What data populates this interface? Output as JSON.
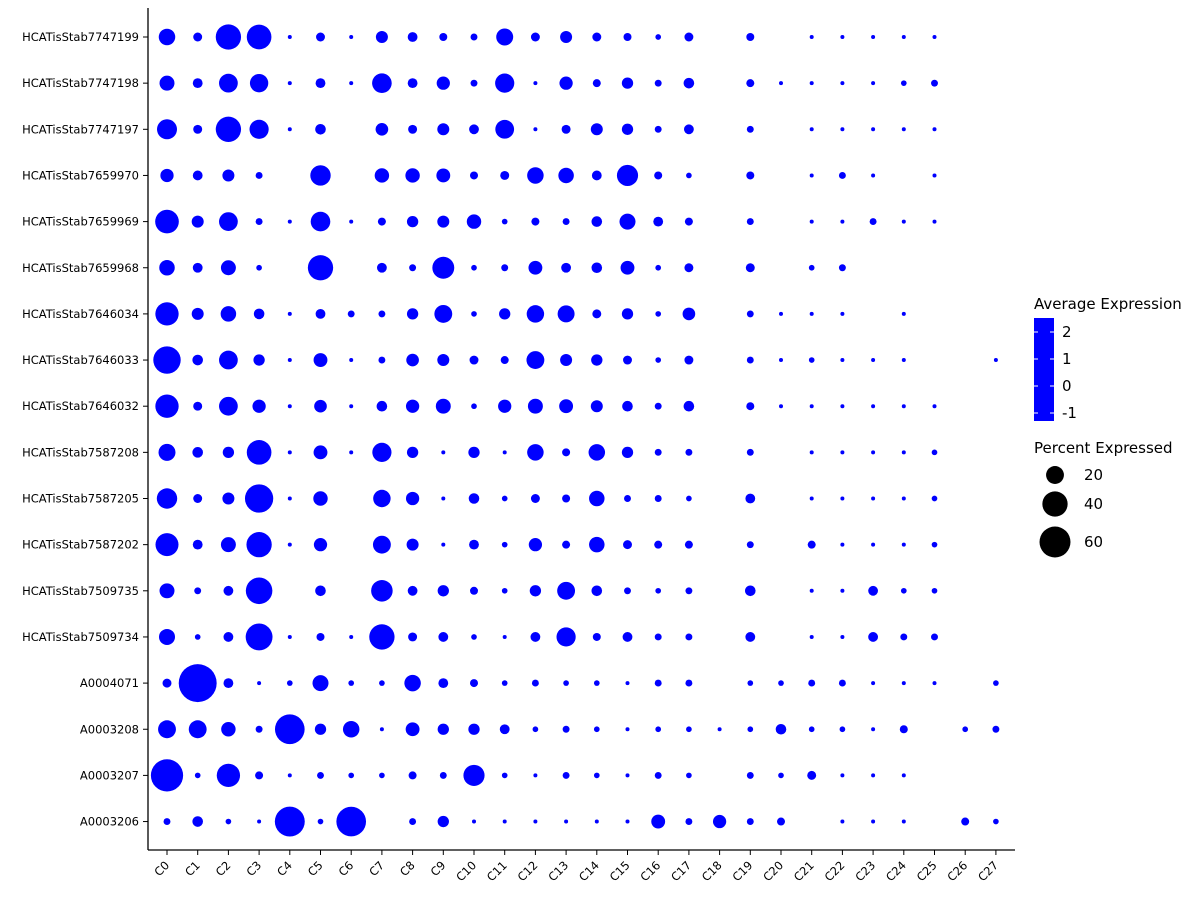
{
  "chart_data": {
    "type": "dotplot",
    "x_label": "",
    "y_label": "",
    "categories_x": [
      "C0",
      "C1",
      "C2",
      "C3",
      "C4",
      "C5",
      "C6",
      "C7",
      "C8",
      "C9",
      "C10",
      "C11",
      "C12",
      "C13",
      "C14",
      "C15",
      "C16",
      "C17",
      "C18",
      "C19",
      "C20",
      "C21",
      "C22",
      "C23",
      "C24",
      "C25",
      "C26",
      "C27"
    ],
    "categories_y": [
      "HCATisStab7747199",
      "HCATisStab7747198",
      "HCATisStab7747197",
      "HCATisStab7659970",
      "HCATisStab7659969",
      "HCATisStab7659968",
      "HCATisStab7646034",
      "HCATisStab7646033",
      "HCATisStab7646032",
      "HCATisStab7587208",
      "HCATisStab7587205",
      "HCATisStab7587202",
      "HCATisStab7509735",
      "HCATisStab7509734",
      "A0004071",
      "A0003208",
      "A0003207",
      "A0003206"
    ],
    "percent_expressed": [
      [
        17,
        5,
        40,
        38,
        1,
        5,
        1,
        9,
        6,
        4,
        3,
        18,
        5,
        9,
        5,
        4,
        2,
        5,
        null,
        4,
        null,
        1,
        1,
        1,
        1,
        1,
        null,
        null
      ],
      [
        14,
        6,
        22,
        21,
        1,
        6,
        1,
        24,
        6,
        11,
        3,
        23,
        1,
        11,
        4,
        8,
        3,
        7,
        null,
        4,
        1,
        1,
        1,
        1,
        2,
        3,
        null,
        null
      ],
      [
        25,
        5,
        40,
        23,
        1,
        7,
        null,
        10,
        5,
        9,
        6,
        22,
        1,
        5,
        9,
        8,
        3,
        6,
        null,
        3,
        null,
        1,
        1,
        1,
        1,
        1,
        null,
        null
      ],
      [
        11,
        6,
        9,
        3,
        null,
        26,
        null,
        13,
        13,
        12,
        4,
        5,
        17,
        15,
        6,
        28,
        4,
        2,
        null,
        4,
        null,
        1,
        3,
        1,
        null,
        1,
        null,
        null
      ],
      [
        35,
        9,
        22,
        3,
        1,
        24,
        1,
        4,
        8,
        9,
        13,
        2,
        4,
        3,
        7,
        16,
        6,
        4,
        null,
        3,
        null,
        1,
        1,
        3,
        1,
        1,
        null,
        null
      ],
      [
        15,
        6,
        14,
        2,
        null,
        40,
        null,
        6,
        3,
        30,
        2,
        3,
        12,
        6,
        7,
        12,
        2,
        5,
        null,
        5,
        null,
        2,
        3,
        null,
        null,
        null,
        null,
        null
      ],
      [
        34,
        9,
        15,
        7,
        1,
        6,
        3,
        3,
        8,
        20,
        2,
        8,
        19,
        18,
        5,
        8,
        2,
        10,
        null,
        3,
        1,
        1,
        1,
        null,
        1,
        null,
        null,
        null
      ],
      [
        47,
        7,
        22,
        8,
        1,
        12,
        1,
        3,
        10,
        9,
        5,
        4,
        20,
        9,
        8,
        5,
        2,
        5,
        null,
        3,
        1,
        2,
        1,
        1,
        1,
        null,
        null,
        1
      ],
      [
        34,
        5,
        22,
        11,
        1,
        10,
        1,
        7,
        11,
        14,
        2,
        11,
        14,
        12,
        9,
        7,
        3,
        7,
        null,
        4,
        1,
        1,
        1,
        1,
        1,
        1,
        null,
        null
      ],
      [
        18,
        7,
        8,
        38,
        1,
        12,
        1,
        23,
        8,
        1,
        8,
        1,
        17,
        4,
        17,
        8,
        3,
        3,
        null,
        3,
        null,
        1,
        1,
        1,
        1,
        2,
        null,
        null
      ],
      [
        26,
        5,
        9,
        50,
        1,
        13,
        null,
        19,
        11,
        1,
        7,
        2,
        5,
        4,
        15,
        3,
        3,
        2,
        null,
        6,
        null,
        1,
        1,
        1,
        1,
        2,
        null,
        null
      ],
      [
        33,
        6,
        14,
        40,
        1,
        11,
        null,
        20,
        9,
        1,
        6,
        2,
        11,
        4,
        15,
        5,
        4,
        4,
        null,
        3,
        null,
        4,
        1,
        1,
        1,
        2,
        null,
        null
      ],
      [
        14,
        3,
        6,
        44,
        null,
        7,
        null,
        29,
        6,
        8,
        4,
        2,
        8,
        20,
        7,
        3,
        2,
        3,
        null,
        7,
        null,
        1,
        1,
        6,
        2,
        2,
        null,
        null
      ],
      [
        16,
        2,
        6,
        45,
        1,
        4,
        1,
        40,
        5,
        6,
        2,
        1,
        6,
        23,
        4,
        6,
        3,
        3,
        null,
        6,
        null,
        1,
        1,
        6,
        3,
        3,
        null,
        null
      ],
      [
        5,
        90,
        6,
        1,
        2,
        16,
        2,
        2,
        17,
        6,
        4,
        2,
        3,
        2,
        2,
        1,
        3,
        3,
        null,
        2,
        2,
        3,
        3,
        1,
        1,
        1,
        null,
        2
      ],
      [
        20,
        20,
        13,
        3,
        55,
        8,
        17,
        1,
        12,
        8,
        8,
        6,
        2,
        3,
        2,
        1,
        2,
        2,
        1,
        2,
        7,
        2,
        2,
        1,
        4,
        null,
        2,
        3
      ],
      [
        65,
        2,
        34,
        4,
        1,
        3,
        2,
        2,
        4,
        3,
        28,
        2,
        1,
        3,
        2,
        1,
        3,
        2,
        null,
        3,
        2,
        5,
        1,
        1,
        1,
        null,
        null,
        null
      ],
      [
        3,
        7,
        2,
        1,
        56,
        2,
        55,
        null,
        3,
        8,
        1,
        1,
        1,
        1,
        1,
        1,
        12,
        3,
        11,
        3,
        4,
        null,
        1,
        1,
        1,
        null,
        4,
        2
      ]
    ],
    "color": "#0000ff",
    "color_legend": {
      "title": "Average Expression",
      "ticks": [
        "2",
        "1",
        "0",
        "-1"
      ]
    },
    "size_legend": {
      "title": "Percent Expressed",
      "ticks": [
        "20",
        "40",
        "60"
      ],
      "values": [
        20,
        40,
        60
      ]
    }
  }
}
